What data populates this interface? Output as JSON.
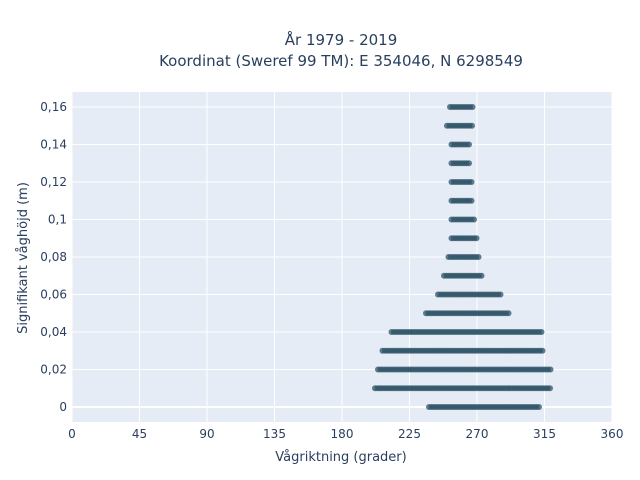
{
  "chart_data": {
    "type": "scatter",
    "title_line1": "År 1979 - 2019",
    "title_line2": "Koordinat (Sweref 99 TM): E 354046, N 6298549",
    "xlabel": "Vågriktning (grader)",
    "ylabel": "Signifikant våghöjd (m)",
    "xlim": [
      0,
      360
    ],
    "ylim": [
      -0.008,
      0.168
    ],
    "xticks": [
      0,
      45,
      90,
      135,
      180,
      225,
      270,
      315,
      360
    ],
    "xtick_labels": [
      "0",
      "45",
      "90",
      "135",
      "180",
      "225",
      "270",
      "315",
      "360"
    ],
    "yticks": [
      0,
      0.02,
      0.04,
      0.06,
      0.08,
      0.1,
      0.12,
      0.14,
      0.16
    ],
    "ytick_labels": [
      "0",
      "0,02",
      "0,04",
      "0,06",
      "0,08",
      "0,1",
      "0,12",
      "0,14",
      "0,16"
    ],
    "grid": true,
    "colors": {
      "plot_bg": "#e5ecf6",
      "grid": "#ffffff",
      "marker": "#2e5266",
      "text": "#2a3f5f"
    },
    "series": [
      {
        "bands": [
          {
            "y": 0.16,
            "x_min": 252,
            "x_max": 267
          },
          {
            "y": 0.15,
            "x_min": 250,
            "x_max": 267
          },
          {
            "y": 0.14,
            "x_min": 253,
            "x_max": 265
          },
          {
            "y": 0.13,
            "x_min": 253,
            "x_max": 266
          },
          {
            "y": 0.12,
            "x_min": 253,
            "x_max": 267
          },
          {
            "y": 0.11,
            "x_min": 253,
            "x_max": 267
          },
          {
            "y": 0.1,
            "x_min": 253,
            "x_max": 268
          },
          {
            "y": 0.09,
            "x_min": 253,
            "x_max": 270
          },
          {
            "y": 0.08,
            "x_min": 251,
            "x_max": 272
          },
          {
            "y": 0.07,
            "x_min": 248,
            "x_max": 273
          },
          {
            "y": 0.06,
            "x_min": 244,
            "x_max": 287
          },
          {
            "y": 0.05,
            "x_min": 236,
            "x_max": 292
          },
          {
            "y": 0.04,
            "x_min": 213,
            "x_max": 313
          },
          {
            "y": 0.03,
            "x_min": 207,
            "x_max": 314
          },
          {
            "y": 0.02,
            "x_min": 204,
            "x_max": 319
          },
          {
            "y": 0.01,
            "x_min": 202,
            "x_max": 320
          },
          {
            "y": 0.0,
            "x_min": 238,
            "x_max": 312
          }
        ]
      }
    ]
  }
}
